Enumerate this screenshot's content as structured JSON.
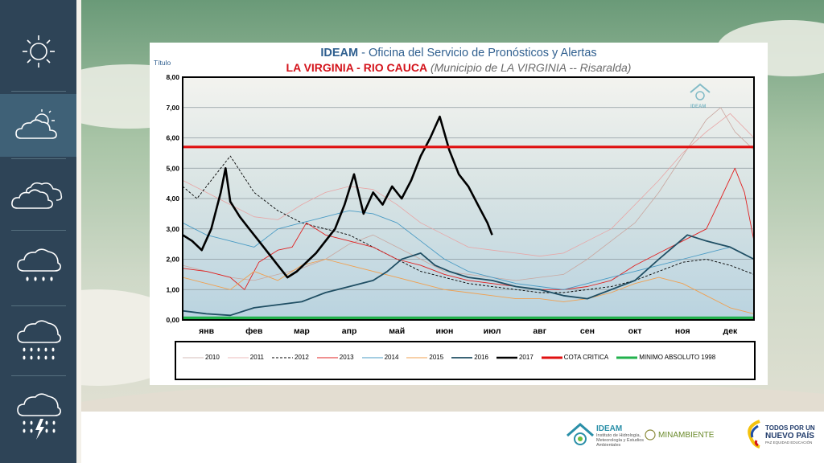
{
  "header": {
    "title_org": "IDEAM",
    "title_rest": " - Oficina del Servicio de Pronósticos y Alertas",
    "station": "LA VIRGINIA - RIO CAUCA",
    "municipality": " (Municipio de LA VIRGINIA -- Risaralda)",
    "axis_caption": "Título"
  },
  "sidebar": {
    "items": [
      {
        "icon": "sun-icon"
      },
      {
        "icon": "partly-cloudy-icon",
        "active": true
      },
      {
        "icon": "clouds-icon"
      },
      {
        "icon": "rain-icon"
      },
      {
        "icon": "heavy-rain-icon"
      },
      {
        "icon": "storm-icon"
      }
    ]
  },
  "footer": {
    "ideam_logo": "IDEAM",
    "ideam_caption": "Instituto de Hidrología, Meteorología y Estudios Ambientales",
    "minambiente": "MINAMBIENTE",
    "todos_line1": "TODOS POR UN",
    "todos_line2": "NUEVO PAÍS",
    "todos_line3": "PAZ  EQUIDAD  EDUCACIÓN"
  },
  "chart_data": {
    "type": "line",
    "title": "IDEAM - Oficina del Servicio de Pronósticos y Alertas",
    "subtitle": "LA VIRGINIA - RIO CAUCA (Municipio de LA VIRGINIA -- Risaralda)",
    "ylabel": "Título",
    "xlabel": "",
    "ylim": [
      0,
      8
    ],
    "yticks": [
      "0,00",
      "1,00",
      "2,00",
      "3,00",
      "4,00",
      "5,00",
      "6,00",
      "7,00",
      "8,00"
    ],
    "categories": [
      "янв",
      "фев",
      "мар",
      "апр",
      "май",
      "июн",
      "июл",
      "авг",
      "сен",
      "окт",
      "ноя",
      "дек"
    ],
    "grid": true,
    "legend_position": "bottom",
    "x_unit_note": "x = month index (0 = start of янв, 12 = end of дек)",
    "series": [
      {
        "name": "2010",
        "color": "#c9a7a0",
        "width": 0.8,
        "dash": "",
        "points": [
          [
            0,
            1.8
          ],
          [
            0.5,
            1.6
          ],
          [
            1,
            1.4
          ],
          [
            1.5,
            1.3
          ],
          [
            2,
            1.5
          ],
          [
            2.5,
            1.7
          ],
          [
            3,
            2.0
          ],
          [
            3.5,
            2.5
          ],
          [
            4,
            2.8
          ],
          [
            4.5,
            2.4
          ],
          [
            5,
            2.0
          ],
          [
            5.5,
            1.6
          ],
          [
            6,
            1.5
          ],
          [
            6.5,
            1.4
          ],
          [
            7,
            1.3
          ],
          [
            7.5,
            1.4
          ],
          [
            8,
            1.5
          ],
          [
            8.5,
            2.0
          ],
          [
            9,
            2.6
          ],
          [
            9.5,
            3.2
          ],
          [
            10,
            4.2
          ],
          [
            10.5,
            5.4
          ],
          [
            11,
            6.6
          ],
          [
            11.3,
            7.0
          ],
          [
            11.6,
            6.2
          ],
          [
            12,
            5.6
          ]
        ]
      },
      {
        "name": "2011",
        "color": "#e8a5a5",
        "width": 0.8,
        "dash": "",
        "points": [
          [
            0,
            4.6
          ],
          [
            0.5,
            4.2
          ],
          [
            1,
            3.8
          ],
          [
            1.5,
            3.4
          ],
          [
            2,
            3.3
          ],
          [
            2.5,
            3.8
          ],
          [
            3,
            4.2
          ],
          [
            3.5,
            4.4
          ],
          [
            4,
            4.3
          ],
          [
            4.5,
            3.8
          ],
          [
            5,
            3.2
          ],
          [
            5.5,
            2.8
          ],
          [
            6,
            2.4
          ],
          [
            6.5,
            2.3
          ],
          [
            7,
            2.2
          ],
          [
            7.5,
            2.1
          ],
          [
            8,
            2.2
          ],
          [
            8.5,
            2.6
          ],
          [
            9,
            3.0
          ],
          [
            9.5,
            3.8
          ],
          [
            10,
            4.6
          ],
          [
            10.5,
            5.5
          ],
          [
            11,
            6.2
          ],
          [
            11.5,
            6.8
          ],
          [
            12,
            6.0
          ]
        ]
      },
      {
        "name": "2012",
        "color": "#000000",
        "width": 0.9,
        "dash": "3,2",
        "points": [
          [
            0,
            4.4
          ],
          [
            0.3,
            4.0
          ],
          [
            0.7,
            4.8
          ],
          [
            1,
            5.4
          ],
          [
            1.5,
            4.2
          ],
          [
            2,
            3.6
          ],
          [
            2.5,
            3.2
          ],
          [
            3,
            3.0
          ],
          [
            3.5,
            2.8
          ],
          [
            4,
            2.4
          ],
          [
            4.5,
            2.0
          ],
          [
            5,
            1.6
          ],
          [
            5.5,
            1.4
          ],
          [
            6,
            1.2
          ],
          [
            6.5,
            1.1
          ],
          [
            7,
            1.0
          ],
          [
            7.5,
            0.9
          ],
          [
            8,
            0.9
          ],
          [
            8.5,
            1.0
          ],
          [
            9,
            1.1
          ],
          [
            9.5,
            1.3
          ],
          [
            10,
            1.6
          ],
          [
            10.5,
            1.9
          ],
          [
            11,
            2.0
          ],
          [
            11.5,
            1.8
          ],
          [
            12,
            1.5
          ]
        ]
      },
      {
        "name": "2013",
        "color": "#e02020",
        "width": 0.9,
        "dash": "",
        "points": [
          [
            0,
            1.7
          ],
          [
            0.5,
            1.6
          ],
          [
            1,
            1.4
          ],
          [
            1.3,
            1.0
          ],
          [
            1.6,
            1.9
          ],
          [
            2,
            2.3
          ],
          [
            2.3,
            2.4
          ],
          [
            2.6,
            3.2
          ],
          [
            3,
            2.8
          ],
          [
            3.5,
            2.6
          ],
          [
            4,
            2.4
          ],
          [
            4.5,
            2.0
          ],
          [
            5,
            1.8
          ],
          [
            5.5,
            1.5
          ],
          [
            6,
            1.3
          ],
          [
            6.5,
            1.2
          ],
          [
            7,
            1.1
          ],
          [
            7.5,
            1.0
          ],
          [
            8,
            1.0
          ],
          [
            8.5,
            1.1
          ],
          [
            9,
            1.3
          ],
          [
            9.5,
            1.8
          ],
          [
            10,
            2.2
          ],
          [
            10.5,
            2.6
          ],
          [
            11,
            3.0
          ],
          [
            11.3,
            4.0
          ],
          [
            11.6,
            5.0
          ],
          [
            11.8,
            4.2
          ],
          [
            12,
            2.6
          ]
        ]
      },
      {
        "name": "2014",
        "color": "#4a9bc4",
        "width": 0.9,
        "dash": "",
        "points": [
          [
            0,
            3.2
          ],
          [
            0.5,
            2.8
          ],
          [
            1,
            2.6
          ],
          [
            1.5,
            2.4
          ],
          [
            2,
            3.0
          ],
          [
            2.5,
            3.2
          ],
          [
            3,
            3.4
          ],
          [
            3.5,
            3.6
          ],
          [
            4,
            3.5
          ],
          [
            4.5,
            3.2
          ],
          [
            5,
            2.6
          ],
          [
            5.5,
            2.0
          ],
          [
            6,
            1.6
          ],
          [
            6.5,
            1.4
          ],
          [
            7,
            1.2
          ],
          [
            7.5,
            1.1
          ],
          [
            8,
            1.0
          ],
          [
            8.5,
            1.2
          ],
          [
            9,
            1.4
          ],
          [
            9.5,
            1.6
          ],
          [
            10,
            1.8
          ],
          [
            10.5,
            2.0
          ],
          [
            11,
            2.2
          ],
          [
            11.5,
            2.4
          ],
          [
            12,
            2.0
          ]
        ]
      },
      {
        "name": "2015",
        "color": "#f0a050",
        "width": 0.9,
        "dash": "",
        "points": [
          [
            0,
            1.4
          ],
          [
            0.5,
            1.2
          ],
          [
            1,
            1.0
          ],
          [
            1.5,
            1.6
          ],
          [
            2,
            1.3
          ],
          [
            2.5,
            1.8
          ],
          [
            3,
            2.0
          ],
          [
            3.5,
            1.8
          ],
          [
            4,
            1.6
          ],
          [
            4.5,
            1.4
          ],
          [
            5,
            1.2
          ],
          [
            5.5,
            1.0
          ],
          [
            6,
            0.9
          ],
          [
            6.5,
            0.8
          ],
          [
            7,
            0.7
          ],
          [
            7.5,
            0.7
          ],
          [
            8,
            0.6
          ],
          [
            8.5,
            0.7
          ],
          [
            9,
            0.9
          ],
          [
            9.5,
            1.2
          ],
          [
            10,
            1.4
          ],
          [
            10.5,
            1.2
          ],
          [
            11,
            0.8
          ],
          [
            11.5,
            0.4
          ],
          [
            12,
            0.2
          ]
        ]
      },
      {
        "name": "2016",
        "color": "#1f4e63",
        "width": 1.8,
        "dash": "",
        "points": [
          [
            0,
            0.3
          ],
          [
            0.5,
            0.2
          ],
          [
            1,
            0.15
          ],
          [
            1.5,
            0.4
          ],
          [
            2,
            0.5
          ],
          [
            2.5,
            0.6
          ],
          [
            3,
            0.9
          ],
          [
            3.5,
            1.1
          ],
          [
            4,
            1.3
          ],
          [
            4.3,
            1.6
          ],
          [
            4.6,
            2.0
          ],
          [
            5,
            2.2
          ],
          [
            5.3,
            1.8
          ],
          [
            5.6,
            1.6
          ],
          [
            6,
            1.4
          ],
          [
            6.5,
            1.3
          ],
          [
            7,
            1.1
          ],
          [
            7.5,
            1.0
          ],
          [
            8,
            0.8
          ],
          [
            8.5,
            0.7
          ],
          [
            9,
            1.0
          ],
          [
            9.5,
            1.3
          ],
          [
            10,
            2.0
          ],
          [
            10.3,
            2.4
          ],
          [
            10.6,
            2.8
          ],
          [
            11,
            2.6
          ],
          [
            11.5,
            2.4
          ],
          [
            12,
            2.0
          ]
        ]
      },
      {
        "name": "2017",
        "color": "#000000",
        "width": 2.6,
        "dash": "",
        "points": [
          [
            0,
            2.8
          ],
          [
            0.2,
            2.6
          ],
          [
            0.4,
            2.3
          ],
          [
            0.6,
            3.0
          ],
          [
            0.8,
            4.2
          ],
          [
            0.9,
            5.0
          ],
          [
            1.0,
            3.9
          ],
          [
            1.2,
            3.4
          ],
          [
            1.4,
            3.0
          ],
          [
            1.6,
            2.6
          ],
          [
            1.8,
            2.2
          ],
          [
            2.0,
            1.8
          ],
          [
            2.2,
            1.4
          ],
          [
            2.4,
            1.6
          ],
          [
            2.6,
            1.9
          ],
          [
            2.8,
            2.2
          ],
          [
            3.0,
            2.6
          ],
          [
            3.2,
            3.0
          ],
          [
            3.4,
            3.8
          ],
          [
            3.6,
            4.8
          ],
          [
            3.8,
            3.5
          ],
          [
            4.0,
            4.2
          ],
          [
            4.2,
            3.8
          ],
          [
            4.4,
            4.4
          ],
          [
            4.6,
            4.0
          ],
          [
            4.8,
            4.6
          ],
          [
            5.0,
            5.4
          ],
          [
            5.2,
            6.0
          ],
          [
            5.4,
            6.7
          ],
          [
            5.6,
            5.6
          ],
          [
            5.8,
            4.8
          ],
          [
            6.0,
            4.4
          ],
          [
            6.2,
            3.8
          ],
          [
            6.4,
            3.2
          ],
          [
            6.5,
            2.8
          ]
        ]
      },
      {
        "name": "COTA CRITICA",
        "color": "#e01010",
        "width": 3.2,
        "dash": "",
        "points": [
          [
            0,
            5.7
          ],
          [
            12,
            5.7
          ]
        ]
      },
      {
        "name": "MINIMO ABSOLUTO 1998",
        "color": "#22b14c",
        "width": 3.2,
        "dash": "",
        "points": [
          [
            0,
            0.07
          ],
          [
            12,
            0.07
          ]
        ]
      }
    ]
  }
}
